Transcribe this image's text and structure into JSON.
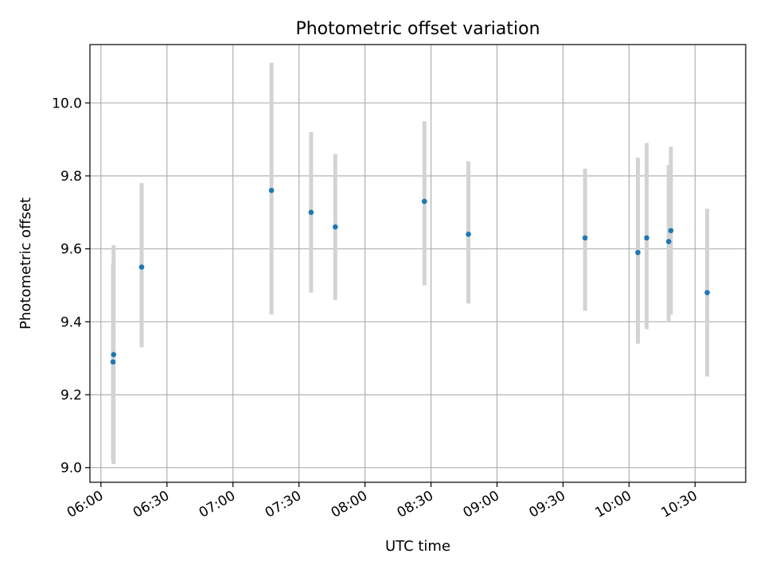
{
  "chart_data": {
    "type": "scatter",
    "title": "Photometric offset variation",
    "xlabel": "UTC time",
    "ylabel": "Photometric offset",
    "x_ticks": [
      "06:00",
      "06:30",
      "07:00",
      "07:30",
      "08:00",
      "08:30",
      "09:00",
      "09:30",
      "10:00",
      "10:30"
    ],
    "y_ticks": [
      "9.0",
      "9.2",
      "9.4",
      "9.6",
      "9.8",
      "10.0"
    ],
    "xlim": [
      "05:55",
      "10:53"
    ],
    "ylim": [
      8.96,
      10.16
    ],
    "grid": true,
    "colors": {
      "marker": "#1f77b4",
      "errorbar": "#d3d3d3",
      "grid": "#b0b0b0"
    },
    "points": [
      {
        "time": "06:05:30",
        "y": 9.29,
        "low": 9.02,
        "high": 9.56
      },
      {
        "time": "06:05:45",
        "y": 9.31,
        "low": 9.01,
        "high": 9.61
      },
      {
        "time": "06:18:30",
        "y": 9.55,
        "low": 9.33,
        "high": 9.78
      },
      {
        "time": "07:17:30",
        "y": 9.76,
        "low": 9.42,
        "high": 10.11
      },
      {
        "time": "07:35:30",
        "y": 9.7,
        "low": 9.48,
        "high": 9.92
      },
      {
        "time": "07:46:30",
        "y": 9.66,
        "low": 9.46,
        "high": 9.86
      },
      {
        "time": "08:27:00",
        "y": 9.73,
        "low": 9.5,
        "high": 9.95
      },
      {
        "time": "08:47:00",
        "y": 9.64,
        "low": 9.45,
        "high": 9.84
      },
      {
        "time": "09:40:00",
        "y": 9.63,
        "low": 9.43,
        "high": 9.82
      },
      {
        "time": "10:04:00",
        "y": 9.59,
        "low": 9.34,
        "high": 9.85
      },
      {
        "time": "10:08:00",
        "y": 9.63,
        "low": 9.38,
        "high": 9.89
      },
      {
        "time": "10:18:00",
        "y": 9.62,
        "low": 9.4,
        "high": 9.83
      },
      {
        "time": "10:19:00",
        "y": 9.65,
        "low": 9.42,
        "high": 9.88
      },
      {
        "time": "10:35:30",
        "y": 9.48,
        "low": 9.25,
        "high": 9.71
      }
    ]
  }
}
